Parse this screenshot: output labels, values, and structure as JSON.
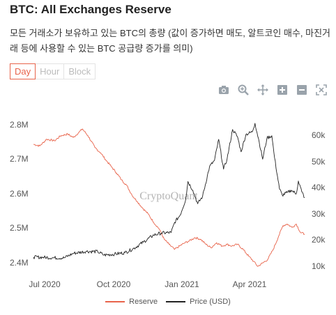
{
  "header": {
    "title": "BTC: All Exchanges Reserve",
    "subtitle": "모든 거래소가 보유하고 있는 BTC의 총량 (값이 증가하면 매도, 알트코인 매수, 마진거래 등에 사용할 수 있는 BTC 공급량 증가를 의미)"
  },
  "tabs": [
    {
      "label": "Day",
      "active": true
    },
    {
      "label": "Hour",
      "active": false
    },
    {
      "label": "Block",
      "active": false
    }
  ],
  "toolbar": [
    "camera-icon",
    "zoom-icon",
    "pan-icon",
    "zoom-in-icon",
    "zoom-out-icon",
    "reset-axes-icon"
  ],
  "watermark": "CryptoQuant",
  "colors": {
    "reserve": "#e8634a",
    "price": "#222222",
    "accent": "#e8634a"
  },
  "chart_data": {
    "type": "line",
    "x_ticks": [
      "Jul 2020",
      "Oct 2020",
      "Jan 2021",
      "Apr 2021"
    ],
    "y_left_ticks": [
      "2.4M",
      "2.5M",
      "2.6M",
      "2.7M",
      "2.8M"
    ],
    "y_right_ticks": [
      "10k",
      "20k",
      "30k",
      "40k",
      "50k",
      "60k"
    ],
    "y_left_range": [
      2370000,
      2830000
    ],
    "y_right_range": [
      3000,
      66000
    ],
    "x_range": [
      "2020-06-01",
      "2021-06-25"
    ],
    "grid": false,
    "legend_position": "bottom",
    "series": [
      {
        "name": "Reserve",
        "axis": "left",
        "points": [
          [
            "2020-06-01",
            2750000
          ],
          [
            "2020-06-10",
            2745000
          ],
          [
            "2020-06-20",
            2765000
          ],
          [
            "2020-07-01",
            2760000
          ],
          [
            "2020-07-10",
            2775000
          ],
          [
            "2020-07-20",
            2780000
          ],
          [
            "2020-07-28",
            2770000
          ],
          [
            "2020-08-05",
            2785000
          ],
          [
            "2020-08-10",
            2795000
          ],
          [
            "2020-08-18",
            2775000
          ],
          [
            "2020-08-28",
            2740000
          ],
          [
            "2020-09-05",
            2725000
          ],
          [
            "2020-09-12",
            2705000
          ],
          [
            "2020-09-20",
            2685000
          ],
          [
            "2020-09-28",
            2665000
          ],
          [
            "2020-10-05",
            2645000
          ],
          [
            "2020-10-12",
            2630000
          ],
          [
            "2020-10-20",
            2600000
          ],
          [
            "2020-10-28",
            2580000
          ],
          [
            "2020-11-05",
            2560000
          ],
          [
            "2020-11-12",
            2545000
          ],
          [
            "2020-11-20",
            2520000
          ],
          [
            "2020-11-28",
            2500000
          ],
          [
            "2020-12-05",
            2470000
          ],
          [
            "2020-12-12",
            2455000
          ],
          [
            "2020-12-20",
            2440000
          ],
          [
            "2020-12-27",
            2450000
          ],
          [
            "2021-01-04",
            2460000
          ],
          [
            "2021-01-10",
            2465000
          ],
          [
            "2021-01-18",
            2475000
          ],
          [
            "2021-01-26",
            2470000
          ],
          [
            "2021-02-03",
            2455000
          ],
          [
            "2021-02-10",
            2445000
          ],
          [
            "2021-02-18",
            2460000
          ],
          [
            "2021-02-26",
            2450000
          ],
          [
            "2021-03-05",
            2455000
          ],
          [
            "2021-03-12",
            2450000
          ],
          [
            "2021-03-20",
            2455000
          ],
          [
            "2021-03-28",
            2440000
          ],
          [
            "2021-04-05",
            2420000
          ],
          [
            "2021-04-12",
            2405000
          ],
          [
            "2021-04-18",
            2390000
          ],
          [
            "2021-04-25",
            2400000
          ],
          [
            "2021-05-02",
            2410000
          ],
          [
            "2021-05-10",
            2440000
          ],
          [
            "2021-05-18",
            2480000
          ],
          [
            "2021-05-24",
            2510000
          ],
          [
            "2021-05-30",
            2515000
          ],
          [
            "2021-06-06",
            2505000
          ],
          [
            "2021-06-12",
            2515000
          ],
          [
            "2021-06-18",
            2490000
          ],
          [
            "2021-06-24",
            2485000
          ]
        ]
      },
      {
        "name": "Price (USD)",
        "axis": "right",
        "points": [
          [
            "2020-06-01",
            9500
          ],
          [
            "2020-06-15",
            9400
          ],
          [
            "2020-07-01",
            9200
          ],
          [
            "2020-07-15",
            9200
          ],
          [
            "2020-07-28",
            11000
          ],
          [
            "2020-08-15",
            11800
          ],
          [
            "2020-09-01",
            11700
          ],
          [
            "2020-09-10",
            10300
          ],
          [
            "2020-09-25",
            10700
          ],
          [
            "2020-10-10",
            11300
          ],
          [
            "2020-10-22",
            12900
          ],
          [
            "2020-11-05",
            15500
          ],
          [
            "2020-11-20",
            18400
          ],
          [
            "2020-12-01",
            19200
          ],
          [
            "2020-12-15",
            19400
          ],
          [
            "2020-12-20",
            23500
          ],
          [
            "2020-12-28",
            26500
          ],
          [
            "2021-01-05",
            33000
          ],
          [
            "2021-01-08",
            40000
          ],
          [
            "2021-01-15",
            36500
          ],
          [
            "2021-01-22",
            31000
          ],
          [
            "2021-01-29",
            34000
          ],
          [
            "2021-02-08",
            46000
          ],
          [
            "2021-02-15",
            48500
          ],
          [
            "2021-02-21",
            57000
          ],
          [
            "2021-02-28",
            45000
          ],
          [
            "2021-03-05",
            49000
          ],
          [
            "2021-03-13",
            61000
          ],
          [
            "2021-03-20",
            58000
          ],
          [
            "2021-03-25",
            52000
          ],
          [
            "2021-04-01",
            59000
          ],
          [
            "2021-04-10",
            60000
          ],
          [
            "2021-04-14",
            63500
          ],
          [
            "2021-04-20",
            56000
          ],
          [
            "2021-04-25",
            49000
          ],
          [
            "2021-05-01",
            57500
          ],
          [
            "2021-05-08",
            58500
          ],
          [
            "2021-05-12",
            49500
          ],
          [
            "2021-05-19",
            37000
          ],
          [
            "2021-05-23",
            34500
          ],
          [
            "2021-05-30",
            35500
          ],
          [
            "2021-06-05",
            36500
          ],
          [
            "2021-06-12",
            35000
          ],
          [
            "2021-06-15",
            40200
          ],
          [
            "2021-06-20",
            35800
          ],
          [
            "2021-06-24",
            33500
          ]
        ]
      }
    ]
  }
}
